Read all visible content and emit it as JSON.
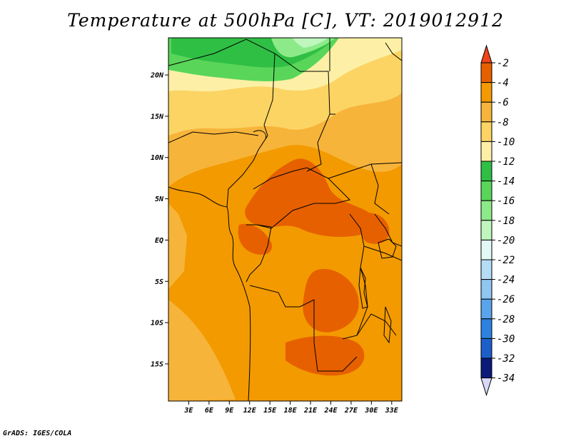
{
  "title": "Temperature at 500hPa [C], VT: 2019012912",
  "footer": "GrADS: IGES/COLA",
  "map": {
    "lon_range": [
      0,
      34.5
    ],
    "lat_range": [
      -19.5,
      24.5
    ],
    "lat_ticks": [
      {
        "value": 20,
        "label": "20N"
      },
      {
        "value": 15,
        "label": "15N"
      },
      {
        "value": 10,
        "label": "10N"
      },
      {
        "value": 5,
        "label": "5N"
      },
      {
        "value": 0,
        "label": "EQ"
      },
      {
        "value": -5,
        "label": "5S"
      },
      {
        "value": -10,
        "label": "10S"
      },
      {
        "value": -15,
        "label": "15S"
      }
    ],
    "lon_ticks": [
      {
        "value": 3,
        "label": "3E"
      },
      {
        "value": 6,
        "label": "6E"
      },
      {
        "value": 9,
        "label": "9E"
      },
      {
        "value": 12,
        "label": "12E"
      },
      {
        "value": 15,
        "label": "15E"
      },
      {
        "value": 18,
        "label": "18E"
      },
      {
        "value": 21,
        "label": "21E"
      },
      {
        "value": 24,
        "label": "24E"
      },
      {
        "value": 27,
        "label": "27E"
      },
      {
        "value": 30,
        "label": "30E"
      },
      {
        "value": 33,
        "label": "33E"
      }
    ]
  },
  "colorbar": {
    "top_label": "-2",
    "levels": [
      {
        "label": "-4",
        "color": "#e66000"
      },
      {
        "label": "-6",
        "color": "#f39a00"
      },
      {
        "label": "-8",
        "color": "#f7b43a"
      },
      {
        "label": "-10",
        "color": "#fbd464"
      },
      {
        "label": "-12",
        "color": "#fdf0a6"
      },
      {
        "label": "-14",
        "color": "#2fbf44"
      },
      {
        "label": "-16",
        "color": "#59d65a"
      },
      {
        "label": "-18",
        "color": "#8ceb88"
      },
      {
        "label": "-20",
        "color": "#bff6be"
      },
      {
        "label": "-22",
        "color": "#e3f9f5"
      },
      {
        "label": "-24",
        "color": "#b4dcf6"
      },
      {
        "label": "-26",
        "color": "#8fc6f2"
      },
      {
        "label": "-28",
        "color": "#5aa4ec"
      },
      {
        "label": "-30",
        "color": "#2c82e0"
      },
      {
        "label": "-32",
        "color": "#1c5fca"
      },
      {
        "label": "-34",
        "color": "#0f3aa6"
      }
    ],
    "top_arrow_color": "#f0441a",
    "bottom_level_color": "#0a1a78",
    "bottom_arrow_color": "#d8d8f8"
  }
}
